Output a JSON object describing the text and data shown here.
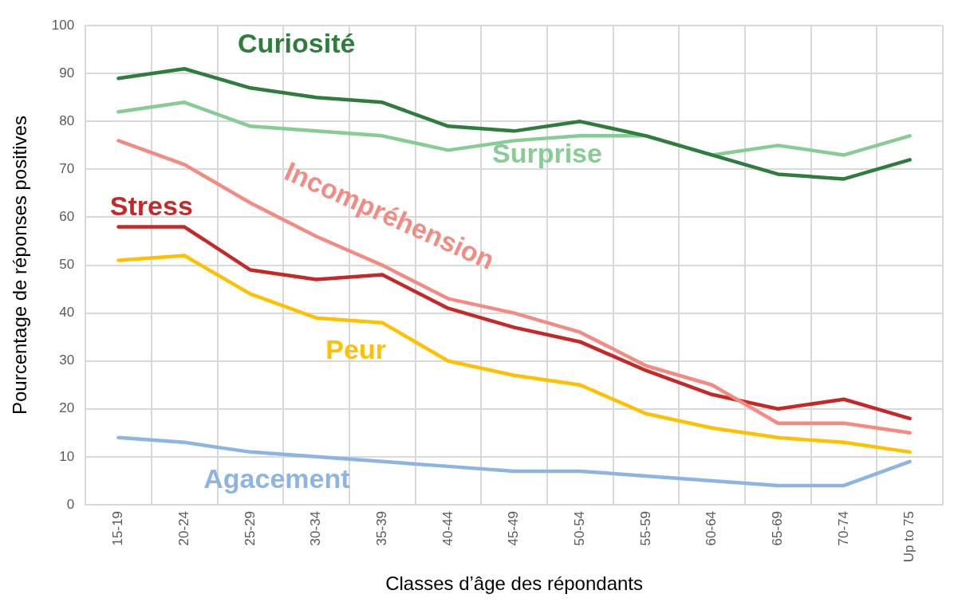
{
  "chart_data": {
    "type": "line",
    "xlabel": "Classes d’âge des répondants",
    "ylabel": "Pourcentage de réponses positives",
    "categories": [
      "15-19",
      "20-24",
      "25-29",
      "30-34",
      "35-39",
      "40-44",
      "45-49",
      "50-54",
      "55-59",
      "60-64",
      "65-69",
      "70-74",
      "Up to 75"
    ],
    "ylim": [
      0,
      100
    ],
    "yticks": [
      0,
      10,
      20,
      30,
      40,
      50,
      60,
      70,
      80,
      90,
      100
    ],
    "grid": true,
    "legend": false,
    "marker": "none",
    "line_style": "solid",
    "series": [
      {
        "name": "Curiosité",
        "color": "#2e7d3e",
        "values": [
          89,
          91,
          87,
          85,
          84,
          79,
          78,
          80,
          77,
          73,
          69,
          68,
          72
        ]
      },
      {
        "name": "Surprise",
        "color": "#86cc94",
        "values": [
          82,
          84,
          79,
          78,
          77,
          74,
          76,
          77,
          77,
          73,
          75,
          73,
          77
        ]
      },
      {
        "name": "Incompréhension",
        "color": "#f28b82",
        "values": [
          76,
          71,
          63,
          56,
          50,
          43,
          40,
          36,
          29,
          25,
          17,
          17,
          15
        ]
      },
      {
        "name": "Stress",
        "color": "#c62828",
        "values": [
          58,
          58,
          49,
          47,
          48,
          41,
          37,
          34,
          28,
          23,
          20,
          22,
          18
        ]
      },
      {
        "name": "Peur",
        "color": "#ffc000",
        "values": [
          51,
          52,
          44,
          39,
          38,
          30,
          27,
          25,
          19,
          16,
          14,
          13,
          11
        ]
      },
      {
        "name": "Agacement",
        "color": "#8eb4e3",
        "values": [
          14,
          13,
          11,
          10,
          9,
          8,
          7,
          7,
          6,
          5,
          4,
          4,
          9
        ]
      }
    ]
  }
}
